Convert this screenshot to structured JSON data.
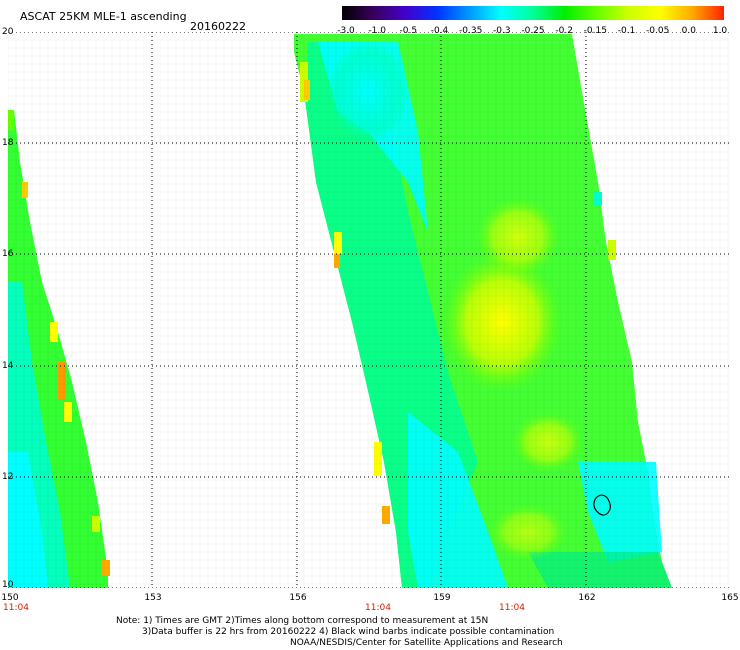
{
  "header": {
    "title": "ASCAT 25KM MLE-1 ascending",
    "date": "20160222"
  },
  "colorbar": {
    "labels": [
      "-3.0",
      "-1.0",
      "-0.5",
      "-0.4",
      "-0.35",
      "-0.3",
      "-0.25",
      "-0.2",
      "-0.15",
      "-0.1",
      "-0.05",
      "0.0",
      "1.0"
    ],
    "colors": [
      "#000000",
      "#3a0060",
      "#4400cc",
      "#0033ff",
      "#0099ff",
      "#00ffff",
      "#00ff99",
      "#00ee00",
      "#66ff00",
      "#ccff00",
      "#ffff00",
      "#ffaa00",
      "#ff2200"
    ]
  },
  "map": {
    "lat_labels": [
      "20",
      "18",
      "16",
      "14",
      "12",
      "10"
    ],
    "lon_labels": [
      "150",
      "153",
      "156",
      "159",
      "162",
      "165"
    ],
    "time_labels": [
      "11:04",
      "11:04",
      "11:04"
    ],
    "lat_range": [
      10,
      20
    ],
    "lon_range": [
      150,
      165
    ],
    "contamination_marker": {
      "lon": 162.2,
      "lat": 11.5
    }
  },
  "footer": {
    "line1": "Note: 1) Times are GMT 2)Times along bottom correspond to measurement at 15N",
    "line2": "3)Data buffer is 22 hrs from 20160222 4) Black wind barbs indicate possible contamination",
    "line3": "NOAA/NESDIS/Center for Satellite Applications and Research"
  }
}
